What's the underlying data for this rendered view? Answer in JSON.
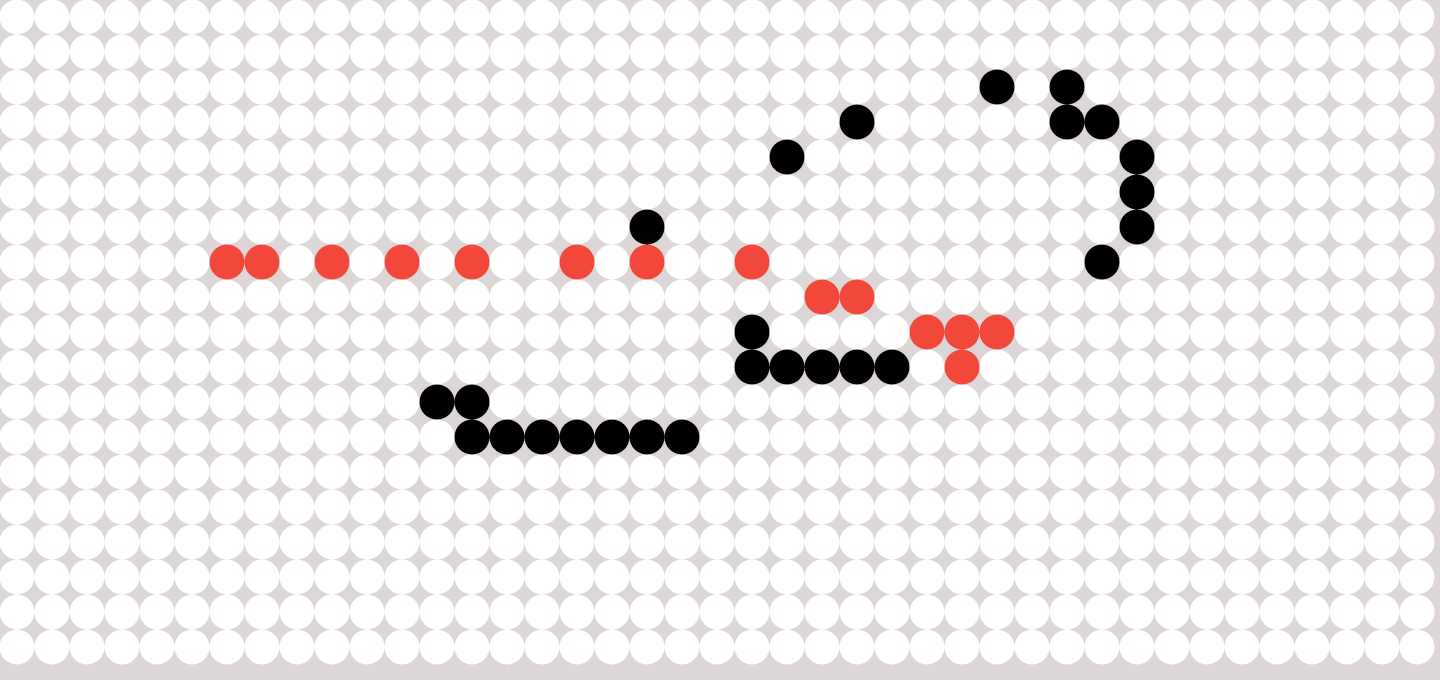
{
  "board": {
    "columns": 41,
    "rows": 19,
    "colors": {
      "background": "#dcd6d6",
      "empty": "#ffffff",
      "black": "#000000",
      "red": "#f2473b"
    }
  },
  "pegs": {
    "black": [
      [
        28,
        2
      ],
      [
        30,
        2
      ],
      [
        24,
        3
      ],
      [
        30,
        3
      ],
      [
        31,
        3
      ],
      [
        22,
        4
      ],
      [
        32,
        4
      ],
      [
        32,
        5
      ],
      [
        18,
        6
      ],
      [
        32,
        6
      ],
      [
        31,
        7
      ],
      [
        21,
        9
      ],
      [
        21,
        10
      ],
      [
        22,
        10
      ],
      [
        23,
        10
      ],
      [
        24,
        10
      ],
      [
        25,
        10
      ],
      [
        12,
        11
      ],
      [
        13,
        11
      ],
      [
        13,
        12
      ],
      [
        14,
        12
      ],
      [
        15,
        12
      ],
      [
        16,
        12
      ],
      [
        17,
        12
      ],
      [
        18,
        12
      ],
      [
        19,
        12
      ]
    ],
    "red": [
      [
        6,
        7
      ],
      [
        7,
        7
      ],
      [
        9,
        7
      ],
      [
        11,
        7
      ],
      [
        13,
        7
      ],
      [
        16,
        7
      ],
      [
        18,
        7
      ],
      [
        21,
        7
      ],
      [
        23,
        8
      ],
      [
        24,
        8
      ],
      [
        26,
        9
      ],
      [
        27,
        9
      ],
      [
        28,
        9
      ],
      [
        27,
        10
      ]
    ]
  }
}
